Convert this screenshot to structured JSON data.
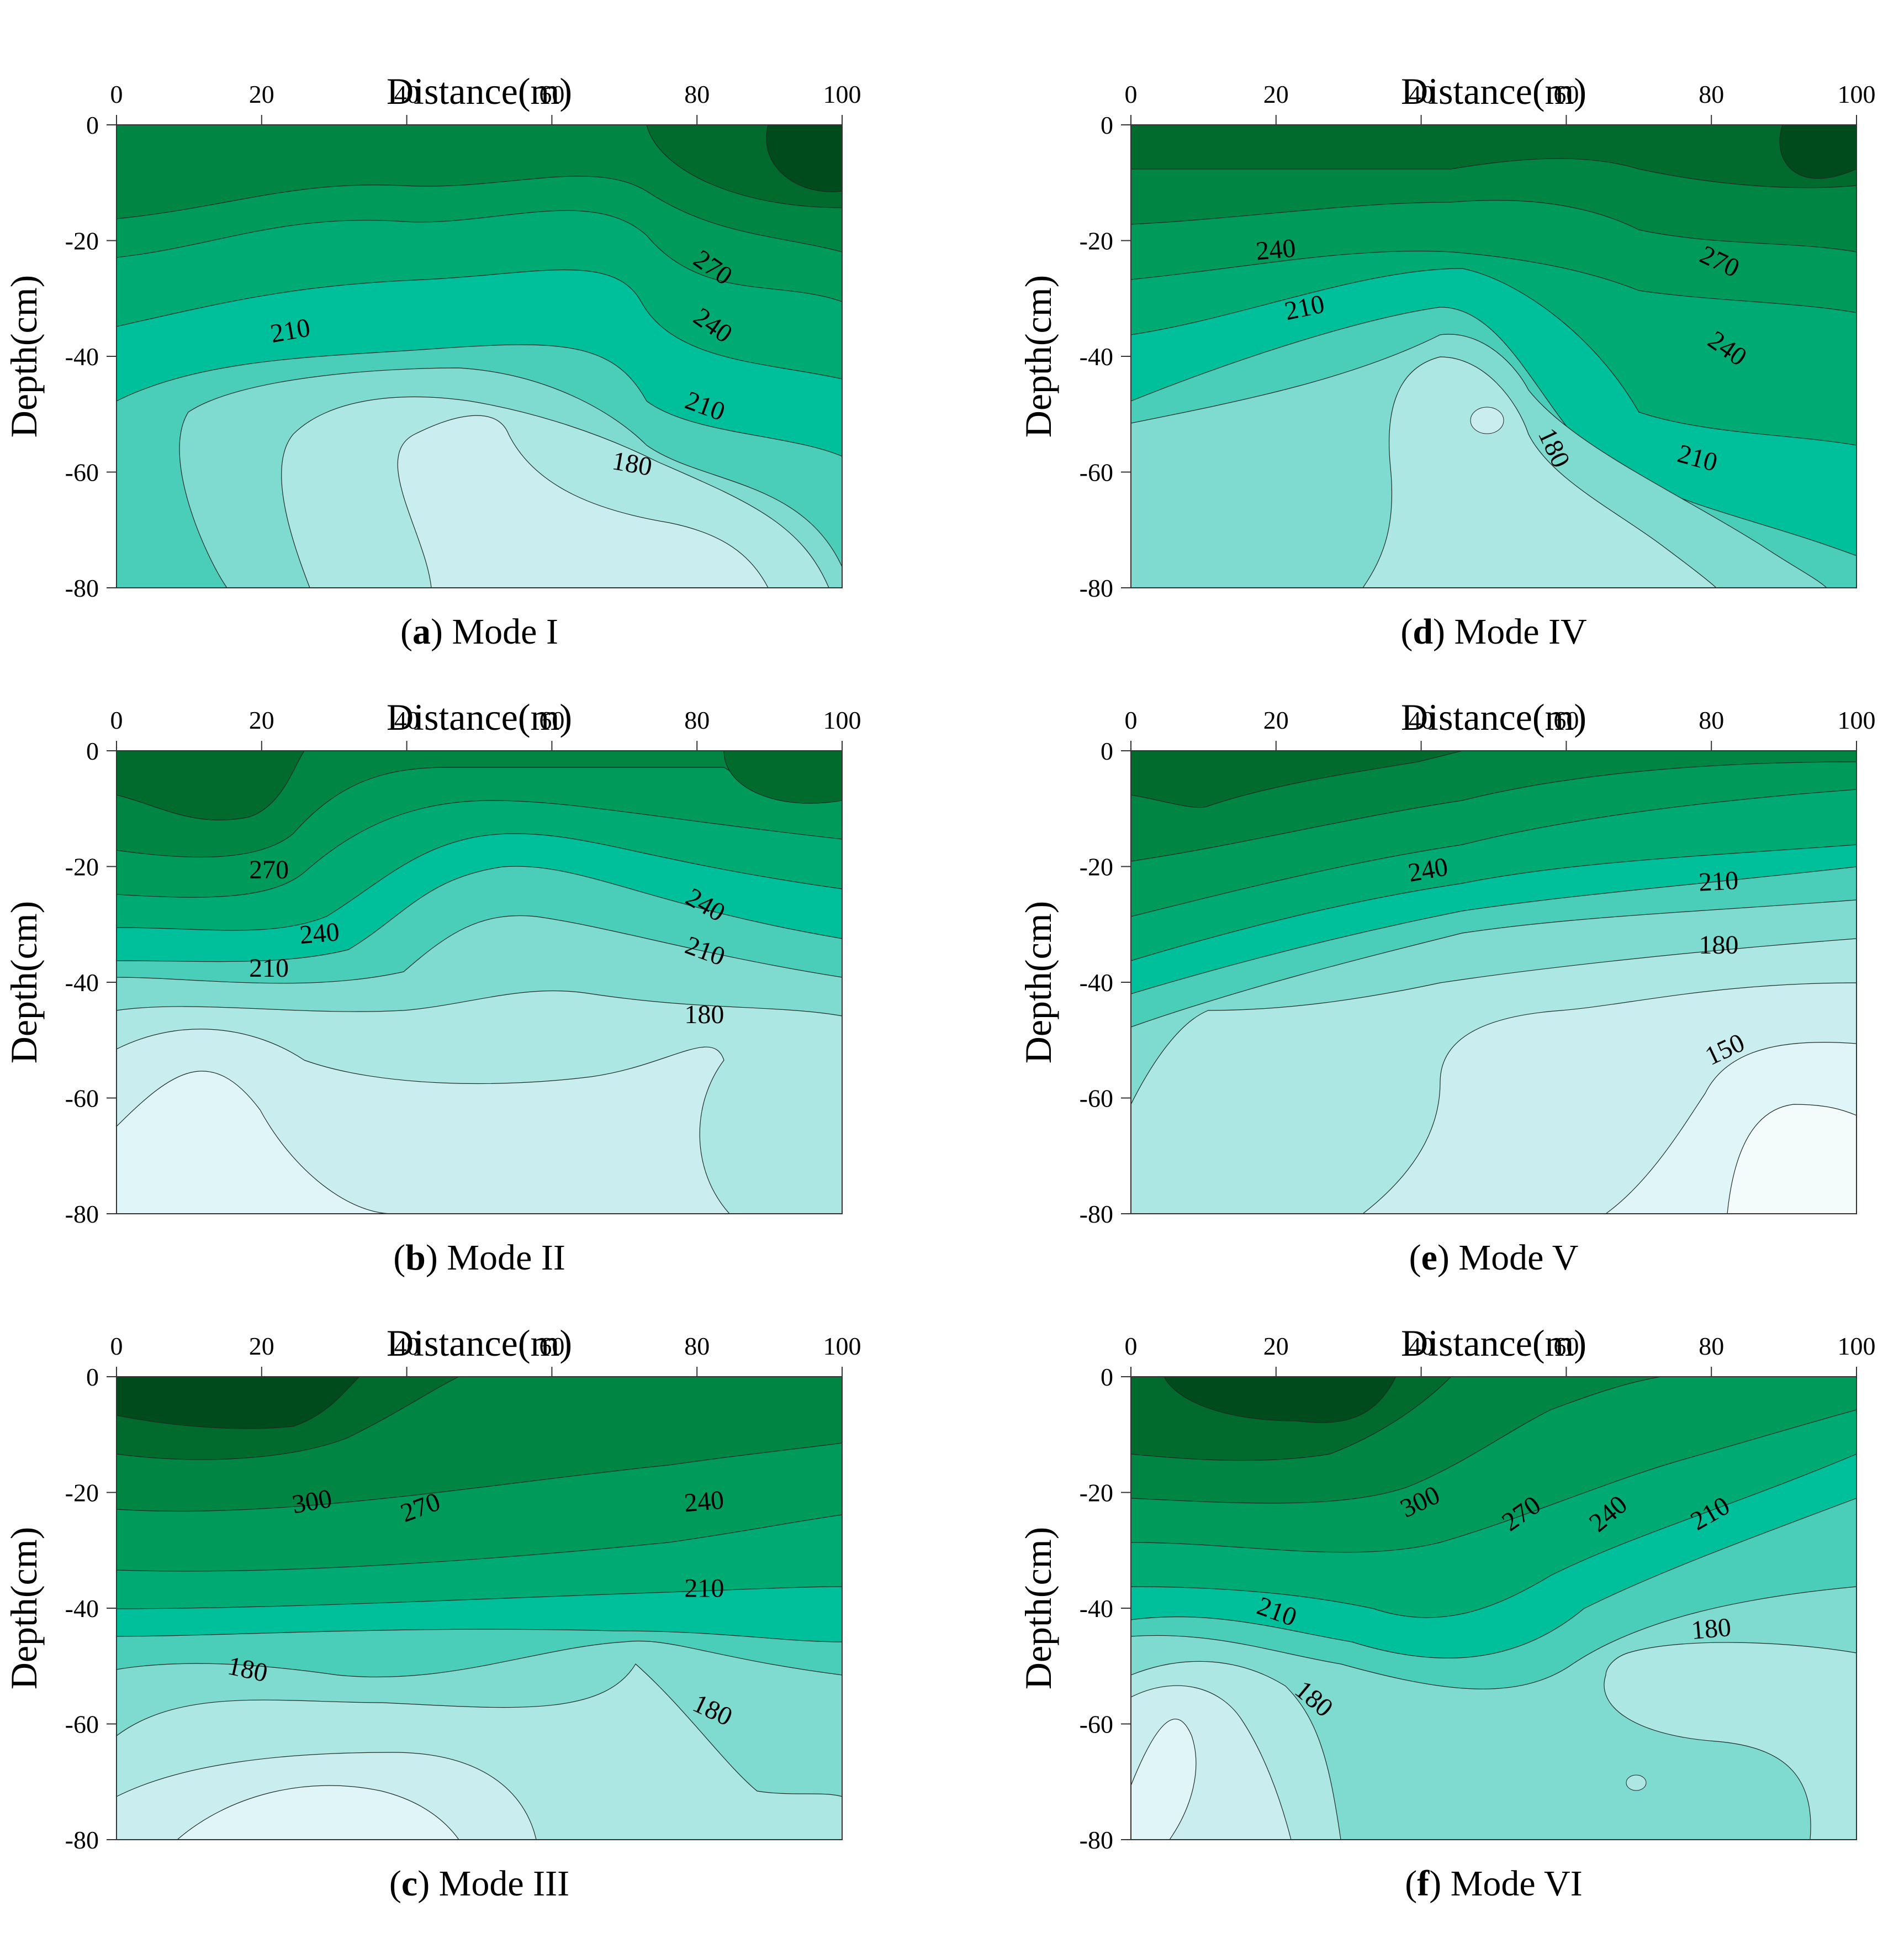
{
  "chart_data": [
    {
      "type": "contour",
      "panel_letter": "a",
      "caption_text": "Mode I",
      "xlabel": "Distance(m)",
      "ylabel": "Depth(cm)",
      "xlim": [
        0,
        100
      ],
      "ylim": [
        -80,
        0
      ],
      "xticks": [
        "0",
        "20",
        "40",
        "60",
        "80",
        "100"
      ],
      "yticks": [
        "0",
        "-20",
        "-40",
        "-60",
        "-80"
      ],
      "contour_labels": [
        {
          "text": "270",
          "x": 82,
          "y": -25,
          "rot": 35
        },
        {
          "text": "240",
          "x": 82,
          "y": -35,
          "rot": 35
        },
        {
          "text": "210",
          "x": 24,
          "y": -36,
          "rot": -10
        },
        {
          "text": "210",
          "x": 81,
          "y": -49,
          "rot": 20
        },
        {
          "text": "180",
          "x": 71,
          "y": -59,
          "rot": 10
        }
      ]
    },
    {
      "type": "contour",
      "panel_letter": "b",
      "caption_text": "Mode II",
      "xlabel": "Distance(m)",
      "ylabel": "Depth(cm)",
      "xlim": [
        0,
        100
      ],
      "ylim": [
        -80,
        0
      ],
      "xticks": [
        "0",
        "20",
        "40",
        "60",
        "80",
        "100"
      ],
      "yticks": [
        "0",
        "-20",
        "-40",
        "-60",
        "-80"
      ],
      "contour_labels": [
        {
          "text": "270",
          "x": 21,
          "y": -21,
          "rot": 0
        },
        {
          "text": "240",
          "x": 28,
          "y": -32,
          "rot": -5
        },
        {
          "text": "210",
          "x": 21,
          "y": -38,
          "rot": 0
        },
        {
          "text": "240",
          "x": 81,
          "y": -27,
          "rot": 30
        },
        {
          "text": "210",
          "x": 81,
          "y": -35,
          "rot": 20
        },
        {
          "text": "180",
          "x": 81,
          "y": -46,
          "rot": 0
        }
      ]
    },
    {
      "type": "contour",
      "panel_letter": "c",
      "caption_text": "Mode III",
      "xlabel": "Distance(m)",
      "ylabel": "Depth(cm)",
      "xlim": [
        0,
        100
      ],
      "ylim": [
        -80,
        0
      ],
      "xticks": [
        "0",
        "20",
        "40",
        "60",
        "80",
        "100"
      ],
      "yticks": [
        "0",
        "-20",
        "-40",
        "-60",
        "-80"
      ],
      "contour_labels": [
        {
          "text": "300",
          "x": 27,
          "y": -22,
          "rot": -10
        },
        {
          "text": "270",
          "x": 42,
          "y": -23,
          "rot": -20
        },
        {
          "text": "240",
          "x": 81,
          "y": -22,
          "rot": -5
        },
        {
          "text": "210",
          "x": 81,
          "y": -37,
          "rot": 0
        },
        {
          "text": "180",
          "x": 18,
          "y": -51,
          "rot": 12
        },
        {
          "text": "180",
          "x": 82,
          "y": -58,
          "rot": 25
        }
      ]
    },
    {
      "type": "contour",
      "panel_letter": "d",
      "caption_text": "Mode IV",
      "xlabel": "Distance(m)",
      "ylabel": "Depth(cm)",
      "xlim": [
        0,
        100
      ],
      "ylim": [
        -80,
        0
      ],
      "xticks": [
        "0",
        "20",
        "40",
        "60",
        "80",
        "100"
      ],
      "yticks": [
        "0",
        "-20",
        "-40",
        "-60",
        "-80"
      ],
      "contour_labels": [
        {
          "text": "240",
          "x": 20,
          "y": -22,
          "rot": -5
        },
        {
          "text": "210",
          "x": 24,
          "y": -32,
          "rot": -12
        },
        {
          "text": "270",
          "x": 81,
          "y": -24,
          "rot": 25
        },
        {
          "text": "240",
          "x": 82,
          "y": -39,
          "rot": 35
        },
        {
          "text": "180",
          "x": 58,
          "y": -56,
          "rot": 65
        },
        {
          "text": "210",
          "x": 78,
          "y": -58,
          "rot": 15
        }
      ]
    },
    {
      "type": "contour",
      "panel_letter": "e",
      "caption_text": "Mode V",
      "xlabel": "Distance(m)",
      "ylabel": "Depth(cm)",
      "xlim": [
        0,
        100
      ],
      "ylim": [
        -80,
        0
      ],
      "xticks": [
        "0",
        "20",
        "40",
        "60",
        "80",
        "100"
      ],
      "yticks": [
        "0",
        "-20",
        "-40",
        "-60",
        "-80"
      ],
      "contour_labels": [
        {
          "text": "240",
          "x": 41,
          "y": -21,
          "rot": -10
        },
        {
          "text": "210",
          "x": 81,
          "y": -23,
          "rot": -3
        },
        {
          "text": "180",
          "x": 81,
          "y": -34,
          "rot": 0
        },
        {
          "text": "150",
          "x": 82,
          "y": -52,
          "rot": -25
        }
      ]
    },
    {
      "type": "contour",
      "panel_letter": "f",
      "caption_text": "Mode VI",
      "xlabel": "Distance(m)",
      "ylabel": "Depth(cm)",
      "xlim": [
        0,
        100
      ],
      "ylim": [
        -80,
        0
      ],
      "xticks": [
        "0",
        "20",
        "40",
        "60",
        "80",
        "100"
      ],
      "yticks": [
        "0",
        "-20",
        "-40",
        "-60",
        "-80"
      ],
      "contour_labels": [
        {
          "text": "300",
          "x": 40,
          "y": -22,
          "rot": -25
        },
        {
          "text": "270",
          "x": 54,
          "y": -24,
          "rot": -35
        },
        {
          "text": "240",
          "x": 66,
          "y": -24,
          "rot": -40
        },
        {
          "text": "210",
          "x": 80,
          "y": -24,
          "rot": -30
        },
        {
          "text": "210",
          "x": 20,
          "y": -41,
          "rot": 20
        },
        {
          "text": "180",
          "x": 25,
          "y": -56,
          "rot": 40
        },
        {
          "text": "180",
          "x": 80,
          "y": -44,
          "rot": -5
        }
      ]
    }
  ],
  "colors": {
    "band_0": "#f3fbfb",
    "band_1": "#e0f5f7",
    "band_2": "#caeeef",
    "band_3": "#ade7e4",
    "band_4": "#7fdbd0",
    "band_5": "#4acdb9",
    "band_6": "#00bf9b",
    "band_7": "#00aa73",
    "band_8": "#009b5a",
    "band_9": "#008642",
    "band_10": "#006b2c",
    "band_11": "#004b1b"
  }
}
